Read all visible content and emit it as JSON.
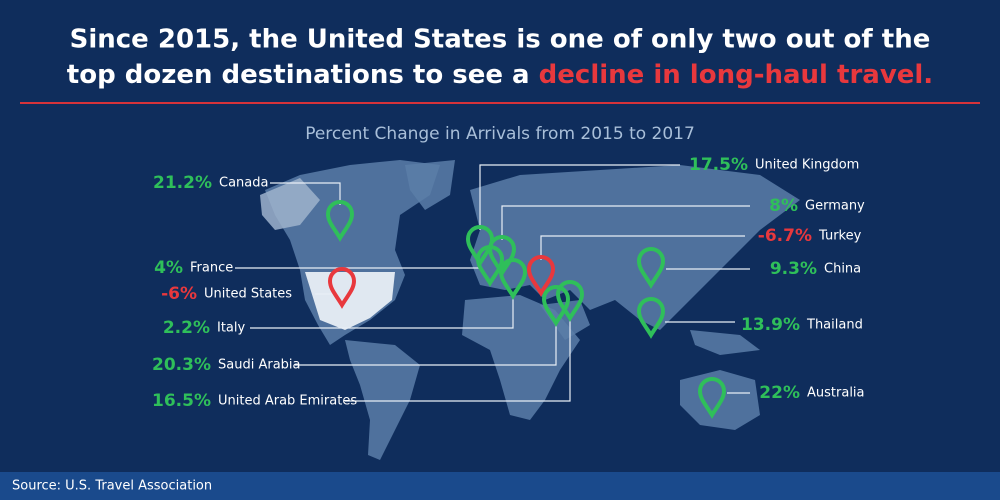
{
  "title": {
    "line1": "Since 2015, the United States is one of only two out of the",
    "line2": "top dozen destinations to see a",
    "highlight": "decline in long-haul travel."
  },
  "subtitle": "Percent Change in Arrivals from 2015 to 2017",
  "destinations": [
    {
      "country": "Canada",
      "change": "21.2%",
      "color": "#2fbf5a"
    },
    {
      "country": "United Kingdom",
      "change": "17.5%",
      "color": "#2fbf5a"
    },
    {
      "country": "Germany",
      "change": "8%",
      "color": "#2fbf5a"
    },
    {
      "country": "Turkey",
      "change": "-6.7%",
      "color": "#e8383d"
    },
    {
      "country": "France",
      "change": "4%",
      "color": "#2fbf5a"
    },
    {
      "country": "China",
      "change": "9.3%",
      "color": "#2fbf5a"
    },
    {
      "country": "United States",
      "change": "-6%",
      "color": "#e8383d"
    },
    {
      "country": "Italy",
      "change": "2.2%",
      "color": "#2fbf5a"
    },
    {
      "country": "Thailand",
      "change": "13.9%",
      "color": "#2fbf5a"
    },
    {
      "country": "Saudi Arabia",
      "change": "20.3%",
      "color": "#2fbf5a"
    },
    {
      "country": "United Arab Emirates",
      "change": "16.5%",
      "color": "#2fbf5a"
    },
    {
      "country": "Australia",
      "change": "22%",
      "color": "#2fbf5a"
    }
  ],
  "source": "Source: U.S. Travel Association"
}
